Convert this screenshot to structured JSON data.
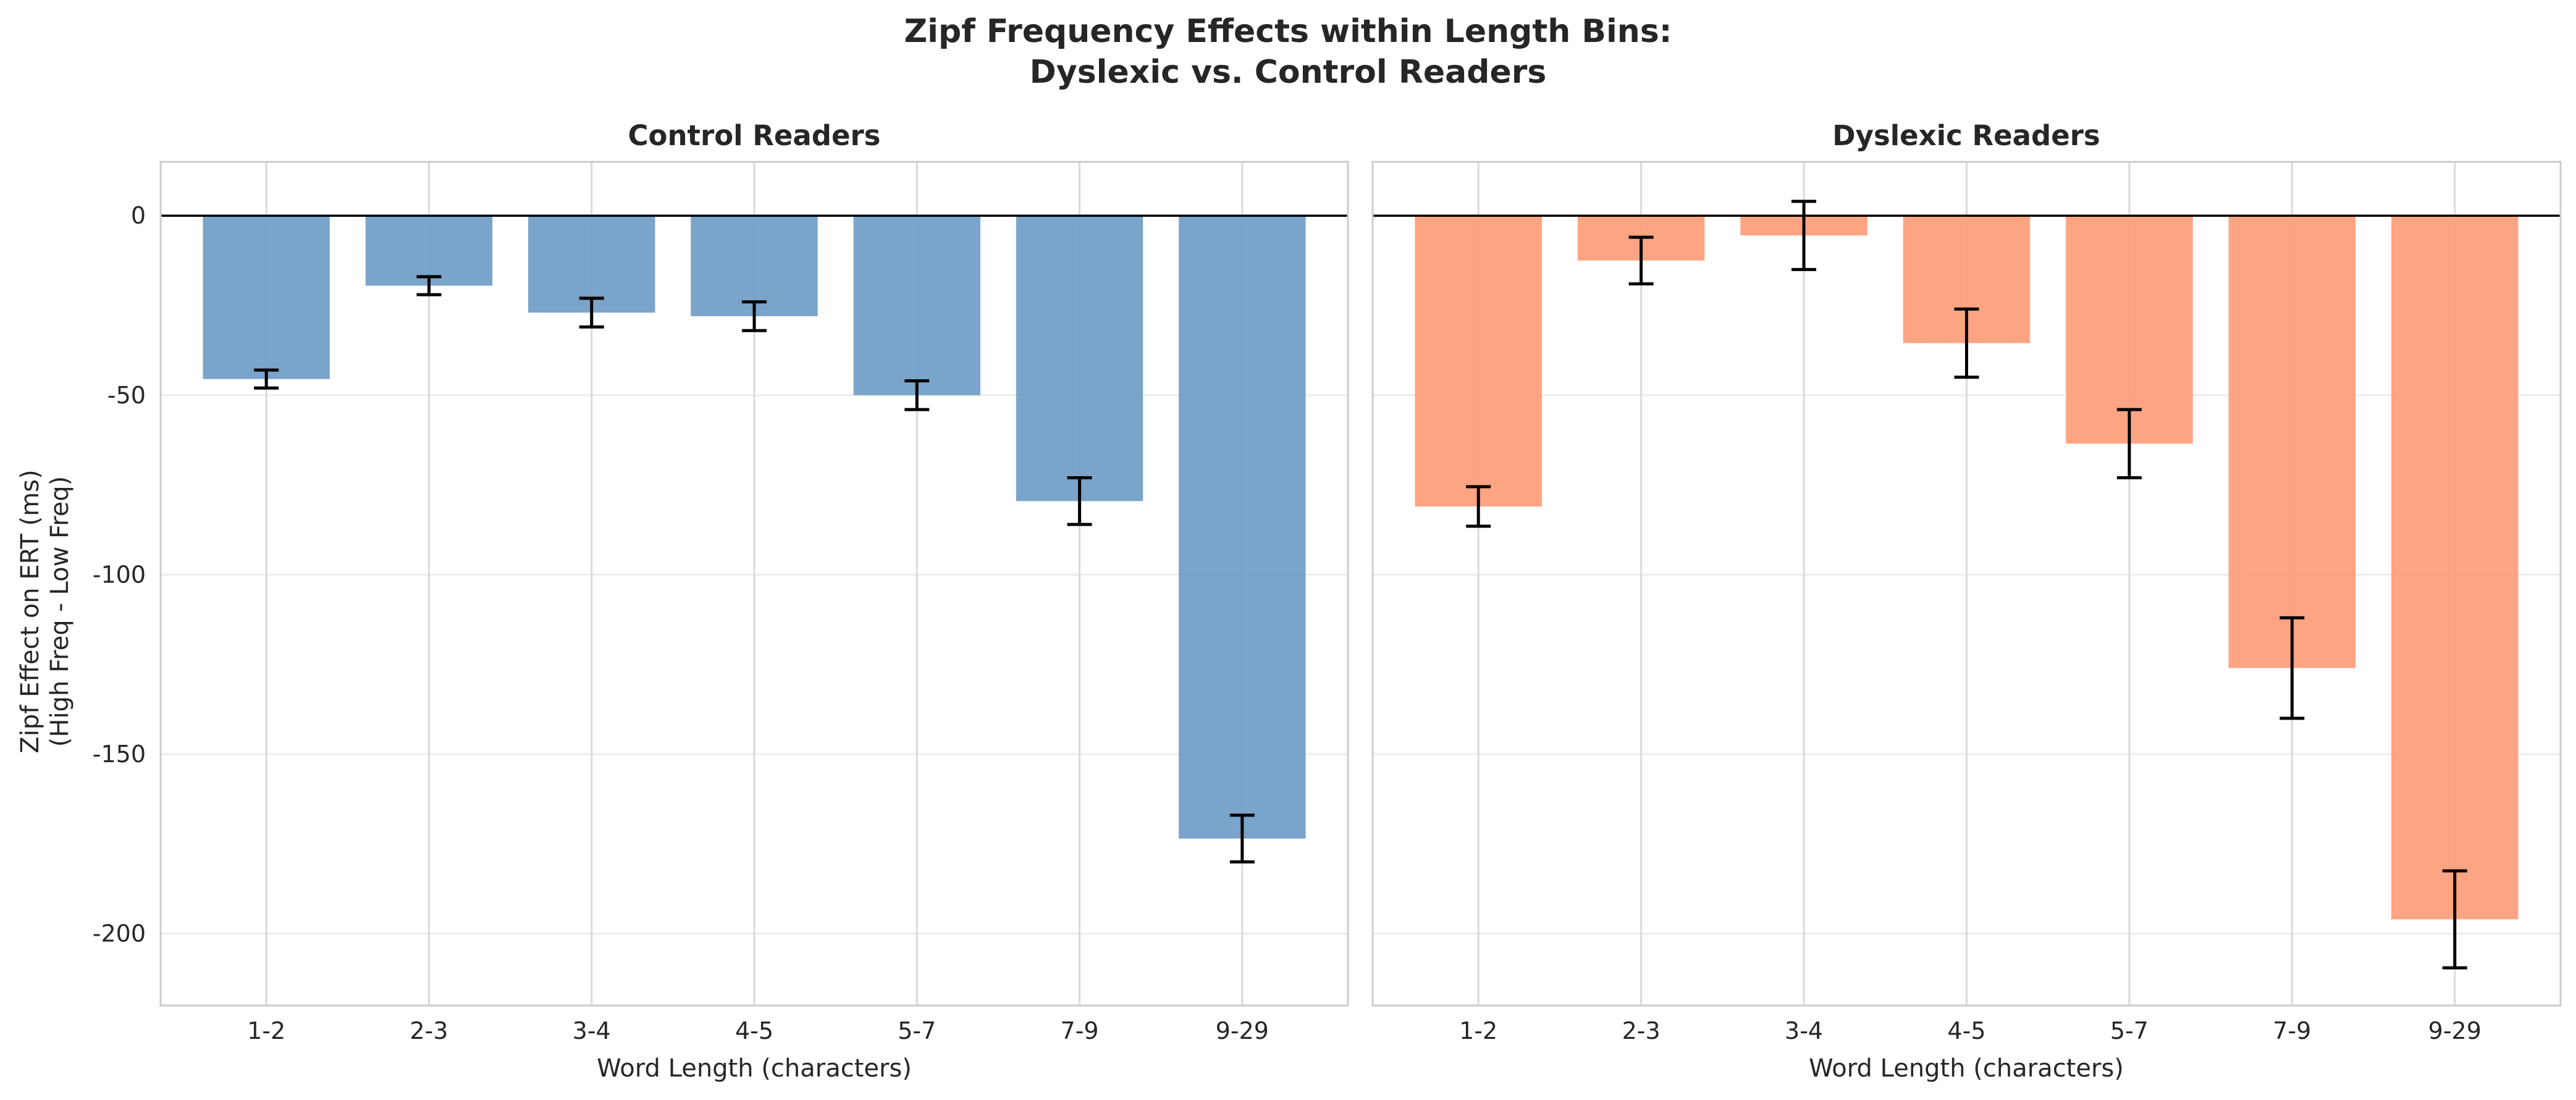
{
  "figure": {
    "title_line1": "Zipf Frequency Effects within Length Bins:",
    "title_line2": "Dyslexic vs. Control Readers"
  },
  "colors": {
    "control": "#6b9ac4",
    "dyslexic": "#ff9a76",
    "grid": "#d9d9d9",
    "frame": "#cccccc",
    "zero_line": "#000000",
    "error_bar": "#000000"
  },
  "chart_data": [
    {
      "type": "bar",
      "title": "Control Readers",
      "xlabel": "Word Length (characters)",
      "ylabel_line1": "Zipf Effect on ERT (ms)",
      "ylabel_line2": "(High Freq - Low Freq)",
      "categories": [
        "1-2",
        "2-3",
        "3-4",
        "4-5",
        "5-7",
        "7-9",
        "9-29"
      ],
      "values": [
        -45.5,
        -19.5,
        -27,
        -28,
        -50,
        -79.5,
        -173.5
      ],
      "error": [
        2.5,
        2.5,
        4,
        4,
        4,
        6.5,
        6.5
      ],
      "ylim": [
        -220,
        15
      ],
      "yticks": [
        0,
        -50,
        -100,
        -150,
        -200
      ],
      "color_key": "control",
      "grid": true
    },
    {
      "type": "bar",
      "title": "Dyslexic Readers",
      "xlabel": "Word Length (characters)",
      "categories": [
        "1-2",
        "2-3",
        "3-4",
        "4-5",
        "5-7",
        "7-9",
        "9-29"
      ],
      "values": [
        -81,
        -12.5,
        -5.5,
        -35.5,
        -63.5,
        -126,
        -196
      ],
      "error": [
        5.5,
        6.5,
        9.5,
        9.5,
        9.5,
        14,
        13.5
      ],
      "ylim": [
        -220,
        15
      ],
      "yticks": [
        0,
        -50,
        -100,
        -150,
        -200
      ],
      "color_key": "dyslexic",
      "grid": true
    }
  ]
}
